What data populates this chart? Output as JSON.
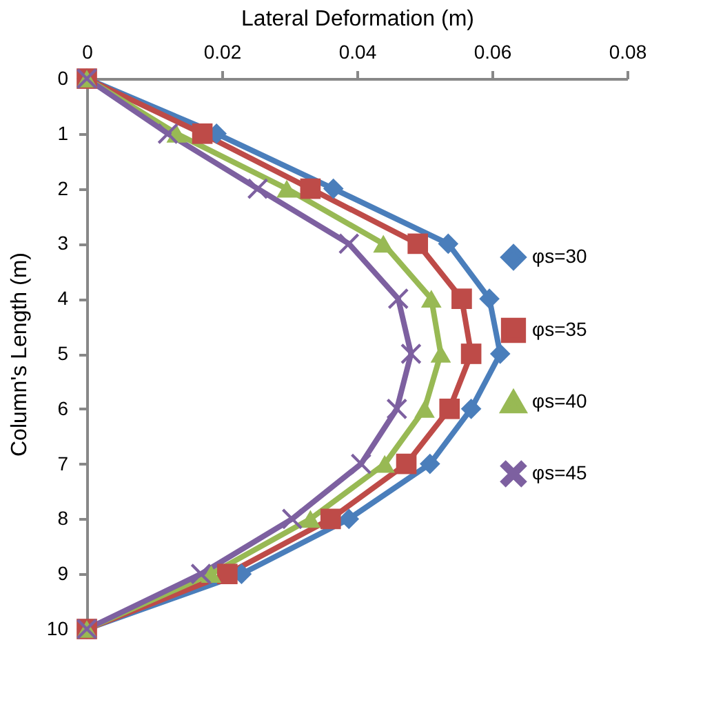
{
  "chart_data": {
    "type": "line",
    "xlabel": "Lateral Deformation (m)",
    "ylabel": "Column's Length (m)",
    "xlim": [
      0,
      0.08
    ],
    "xticks": [
      0,
      0.02,
      0.04,
      0.06,
      0.08
    ],
    "ylim": [
      10,
      0
    ],
    "yticks": [
      0,
      1,
      2,
      3,
      4,
      5,
      6,
      7,
      8,
      9,
      10
    ],
    "grid": false,
    "legend": "right",
    "line_style": "solid",
    "series": [
      {
        "name": "φs=30",
        "color": "#4a7ebb",
        "marker": "diamond",
        "x": [
          0,
          0.0192,
          0.0365,
          0.0535,
          0.0596,
          0.0612,
          0.0569,
          0.0508,
          0.0388,
          0.0229,
          0
        ],
        "values": [
          0,
          1,
          2,
          3,
          4,
          5,
          6,
          7,
          8,
          9,
          10
        ]
      },
      {
        "name": "φs=35",
        "color": "#be4b48",
        "marker": "square",
        "x": [
          0,
          0.0171,
          0.0331,
          0.049,
          0.0555,
          0.0569,
          0.0537,
          0.0473,
          0.0361,
          0.0208,
          0
        ],
        "values": [
          0,
          1,
          2,
          3,
          4,
          5,
          6,
          7,
          8,
          9,
          10
        ]
      },
      {
        "name": "φs=40",
        "color": "#98b954",
        "marker": "triangle",
        "x": [
          0,
          0.0133,
          0.0296,
          0.0439,
          0.051,
          0.0524,
          0.05,
          0.0441,
          0.0331,
          0.0184,
          0
        ],
        "values": [
          0,
          1,
          2,
          3,
          4,
          5,
          6,
          7,
          8,
          9,
          10
        ]
      },
      {
        "name": "φs=45",
        "color": "#7d60a0",
        "marker": "cross",
        "x": [
          0,
          0.012,
          0.0253,
          0.0388,
          0.0461,
          0.048,
          0.0459,
          0.0406,
          0.0304,
          0.0169,
          0
        ],
        "values": [
          0,
          1,
          2,
          3,
          4,
          5,
          6,
          7,
          8,
          9,
          10
        ]
      }
    ]
  }
}
